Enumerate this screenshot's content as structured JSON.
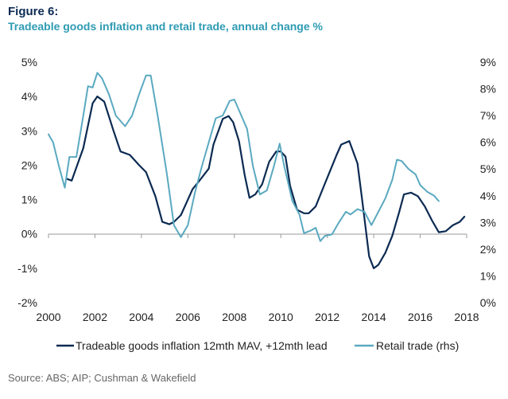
{
  "figure": {
    "title": "Figure 6:",
    "subtitle": "Tradeable goods inflation and retail trade, annual change %",
    "source": "Source: ABS; AIP; Cushman & Wakefield"
  },
  "colors": {
    "title": "#0b2a52",
    "subtitle": "#2e9bb3",
    "series_dark": "#0b2a52",
    "series_light": "#5aa9c0"
  },
  "chart_data": {
    "type": "line",
    "x_range": [
      2000,
      2018
    ],
    "x_ticks": [
      "2000",
      "2002",
      "2004",
      "2006",
      "2008",
      "2010",
      "2012",
      "2014",
      "2016",
      "2018"
    ],
    "y_left": {
      "range": [
        -2,
        5
      ],
      "ticks": [
        "-2%",
        "-1%",
        "0%",
        "1%",
        "2%",
        "3%",
        "4%",
        "5%"
      ]
    },
    "y_right": {
      "range": [
        0,
        9
      ],
      "ticks": [
        "0%",
        "1%",
        "2%",
        "3%",
        "4%",
        "5%",
        "6%",
        "7%",
        "8%",
        "9%"
      ]
    },
    "grid": false,
    "legend_position": "bottom",
    "series": [
      {
        "name": "Tradeable goods inflation 12mth MAV, +12mth lead",
        "axis": "left",
        "color": "#0b2a52",
        "points": [
          [
            2000.8,
            1.6
          ],
          [
            2001.0,
            1.55
          ],
          [
            2001.5,
            2.5
          ],
          [
            2001.9,
            3.8
          ],
          [
            2002.1,
            4.0
          ],
          [
            2002.4,
            3.85
          ],
          [
            2002.8,
            3.0
          ],
          [
            2003.1,
            2.4
          ],
          [
            2003.5,
            2.3
          ],
          [
            2003.9,
            2.0
          ],
          [
            2004.2,
            1.8
          ],
          [
            2004.6,
            1.1
          ],
          [
            2004.9,
            0.35
          ],
          [
            2005.2,
            0.28
          ],
          [
            2005.4,
            0.35
          ],
          [
            2005.7,
            0.55
          ],
          [
            2006.2,
            1.3
          ],
          [
            2006.5,
            1.55
          ],
          [
            2006.9,
            1.9
          ],
          [
            2007.1,
            2.6
          ],
          [
            2007.5,
            3.35
          ],
          [
            2007.75,
            3.43
          ],
          [
            2007.95,
            3.25
          ],
          [
            2008.2,
            2.7
          ],
          [
            2008.45,
            1.7
          ],
          [
            2008.65,
            1.05
          ],
          [
            2008.9,
            1.15
          ],
          [
            2009.2,
            1.45
          ],
          [
            2009.5,
            2.1
          ],
          [
            2009.8,
            2.4
          ],
          [
            2010.0,
            2.4
          ],
          [
            2010.2,
            2.25
          ],
          [
            2010.4,
            1.4
          ],
          [
            2010.7,
            0.7
          ],
          [
            2011.0,
            0.6
          ],
          [
            2011.2,
            0.6
          ],
          [
            2011.5,
            0.8
          ],
          [
            2011.8,
            1.3
          ],
          [
            2012.1,
            1.8
          ],
          [
            2012.4,
            2.3
          ],
          [
            2012.6,
            2.6
          ],
          [
            2012.95,
            2.7
          ],
          [
            2013.3,
            2.05
          ],
          [
            2013.5,
            1.0
          ],
          [
            2013.8,
            -0.65
          ],
          [
            2014.0,
            -1.0
          ],
          [
            2014.2,
            -0.9
          ],
          [
            2014.5,
            -0.55
          ],
          [
            2014.8,
            -0.05
          ],
          [
            2015.1,
            0.65
          ],
          [
            2015.3,
            1.15
          ],
          [
            2015.6,
            1.2
          ],
          [
            2015.9,
            1.1
          ],
          [
            2016.2,
            0.8
          ],
          [
            2016.5,
            0.4
          ],
          [
            2016.8,
            0.05
          ],
          [
            2017.1,
            0.08
          ],
          [
            2017.4,
            0.25
          ],
          [
            2017.7,
            0.35
          ],
          [
            2017.9,
            0.5
          ]
        ]
      },
      {
        "name": "Retail trade (rhs)",
        "axis": "right",
        "color": "#5aa9c0",
        "points": [
          [
            2000.0,
            6.3
          ],
          [
            2000.2,
            6.0
          ],
          [
            2000.45,
            5.1
          ],
          [
            2000.7,
            4.3
          ],
          [
            2000.9,
            5.45
          ],
          [
            2001.2,
            5.45
          ],
          [
            2001.5,
            7.0
          ],
          [
            2001.7,
            8.1
          ],
          [
            2001.9,
            8.05
          ],
          [
            2002.1,
            8.6
          ],
          [
            2002.3,
            8.4
          ],
          [
            2002.6,
            7.8
          ],
          [
            2002.9,
            7.0
          ],
          [
            2003.3,
            6.6
          ],
          [
            2003.6,
            7.0
          ],
          [
            2003.9,
            7.8
          ],
          [
            2004.2,
            8.5
          ],
          [
            2004.4,
            8.5
          ],
          [
            2004.7,
            7.0
          ],
          [
            2005.1,
            4.8
          ],
          [
            2005.4,
            2.9
          ],
          [
            2005.7,
            2.45
          ],
          [
            2006.0,
            2.9
          ],
          [
            2006.3,
            4.1
          ],
          [
            2006.6,
            5.1
          ],
          [
            2006.9,
            6.0
          ],
          [
            2007.2,
            6.9
          ],
          [
            2007.5,
            7.0
          ],
          [
            2007.8,
            7.55
          ],
          [
            2008.0,
            7.6
          ],
          [
            2008.2,
            7.2
          ],
          [
            2008.55,
            6.5
          ],
          [
            2008.8,
            5.1
          ],
          [
            2009.1,
            4.05
          ],
          [
            2009.4,
            4.2
          ],
          [
            2009.7,
            5.1
          ],
          [
            2009.95,
            5.95
          ],
          [
            2010.15,
            5.1
          ],
          [
            2010.5,
            3.8
          ],
          [
            2010.8,
            3.3
          ],
          [
            2011.0,
            2.6
          ],
          [
            2011.3,
            2.7
          ],
          [
            2011.5,
            2.8
          ],
          [
            2011.7,
            2.3
          ],
          [
            2011.9,
            2.5
          ],
          [
            2012.2,
            2.55
          ],
          [
            2012.5,
            3.0
          ],
          [
            2012.8,
            3.4
          ],
          [
            2013.0,
            3.3
          ],
          [
            2013.3,
            3.5
          ],
          [
            2013.6,
            3.4
          ],
          [
            2013.9,
            2.9
          ],
          [
            2014.2,
            3.4
          ],
          [
            2014.5,
            3.9
          ],
          [
            2014.8,
            4.6
          ],
          [
            2015.0,
            5.35
          ],
          [
            2015.2,
            5.3
          ],
          [
            2015.5,
            5.0
          ],
          [
            2015.8,
            4.8
          ],
          [
            2016.0,
            4.4
          ],
          [
            2016.3,
            4.15
          ],
          [
            2016.6,
            4.0
          ],
          [
            2016.8,
            3.8
          ]
        ]
      }
    ]
  }
}
